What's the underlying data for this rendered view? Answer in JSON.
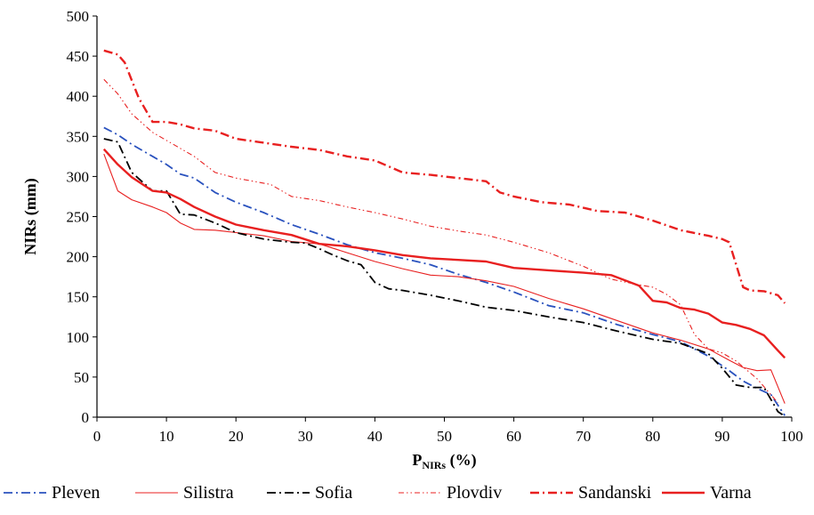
{
  "chart_data": {
    "type": "line",
    "title": "",
    "xlabel": "P",
    "xlabel_sub": "NIRs",
    "xlabel_suffix": " (%)",
    "ylabel": "NIRs (mm)",
    "xlim": [
      0,
      100
    ],
    "ylim": [
      0,
      500
    ],
    "x_ticks": [
      0,
      10,
      20,
      30,
      40,
      50,
      60,
      70,
      80,
      90,
      100
    ],
    "y_ticks": [
      0,
      50,
      100,
      150,
      200,
      250,
      300,
      350,
      400,
      450,
      500
    ],
    "grid": false,
    "legend_position": "bottom",
    "series": [
      {
        "name": "Pleven",
        "color": "#2a52be",
        "dash": "dash-dot",
        "weight": "medium",
        "x": [
          1,
          3,
          5,
          8,
          10,
          12,
          14,
          17,
          20,
          24,
          28,
          32,
          36,
          40,
          44,
          48,
          52,
          56,
          60,
          65,
          70,
          75,
          80,
          84,
          88,
          91,
          93,
          95,
          97,
          99
        ],
        "y": [
          361,
          352,
          340,
          325,
          315,
          303,
          298,
          280,
          268,
          255,
          240,
          228,
          215,
          205,
          198,
          190,
          178,
          168,
          156,
          139,
          130,
          115,
          103,
          94,
          76,
          58,
          45,
          36,
          28,
          2
        ]
      },
      {
        "name": "Silistra",
        "color": "#e82020",
        "dash": "solid",
        "weight": "thin",
        "x": [
          1,
          3,
          5,
          8,
          10,
          12,
          14,
          17,
          20,
          24,
          28,
          32,
          36,
          40,
          44,
          48,
          52,
          56,
          60,
          65,
          70,
          75,
          80,
          84,
          88,
          91,
          93,
          95,
          97,
          99
        ],
        "y": [
          328,
          282,
          271,
          262,
          255,
          242,
          234,
          233,
          230,
          226,
          219,
          216,
          205,
          194,
          185,
          177,
          175,
          170,
          163,
          148,
          135,
          120,
          105,
          96,
          85,
          71,
          62,
          58,
          59,
          17
        ]
      },
      {
        "name": "Sofia",
        "color": "#000000",
        "dash": "dash-dot",
        "weight": "medium",
        "x": [
          1,
          3,
          5,
          8,
          10,
          12,
          14,
          17,
          20,
          24,
          28,
          30,
          32,
          34,
          36,
          38,
          40,
          42,
          44,
          48,
          52,
          56,
          60,
          65,
          70,
          75,
          80,
          84,
          88,
          90,
          92,
          94,
          96,
          98,
          99
        ],
        "y": [
          347,
          343,
          305,
          282,
          282,
          253,
          252,
          242,
          230,
          222,
          218,
          217,
          210,
          202,
          195,
          190,
          168,
          160,
          158,
          152,
          145,
          137,
          133,
          125,
          118,
          107,
          97,
          92,
          79,
          61,
          40,
          37,
          37,
          7,
          1
        ]
      },
      {
        "name": "Plovdiv",
        "color": "#e82020",
        "dash": "dash-dot-dot",
        "weight": "thin",
        "x": [
          1,
          3,
          5,
          8,
          10,
          12,
          14,
          17,
          20,
          25,
          28,
          32,
          36,
          40,
          44,
          48,
          52,
          56,
          60,
          65,
          70,
          74,
          78,
          80,
          82,
          84,
          86,
          88,
          90,
          92,
          95,
          98
        ],
        "y": [
          421,
          403,
          378,
          355,
          345,
          335,
          325,
          305,
          298,
          290,
          275,
          270,
          262,
          255,
          247,
          238,
          232,
          227,
          218,
          205,
          188,
          172,
          165,
          162,
          153,
          140,
          103,
          85,
          80,
          70,
          48,
          18
        ]
      },
      {
        "name": "Sandanski",
        "color": "#e82020",
        "dash": "dash-dot",
        "weight": "thick",
        "x": [
          1,
          3,
          4,
          6,
          8,
          10,
          12,
          14,
          17,
          20,
          24,
          28,
          32,
          36,
          40,
          44,
          48,
          52,
          56,
          58,
          60,
          64,
          68,
          72,
          76,
          80,
          84,
          88,
          90,
          91,
          92,
          93,
          94,
          96,
          98,
          99
        ],
        "y": [
          457,
          452,
          442,
          398,
          368,
          368,
          365,
          360,
          357,
          347,
          342,
          337,
          333,
          325,
          320,
          305,
          302,
          298,
          294,
          280,
          275,
          268,
          265,
          257,
          255,
          245,
          233,
          226,
          222,
          218,
          190,
          162,
          158,
          157,
          152,
          142
        ]
      },
      {
        "name": "Varna",
        "color": "#e82020",
        "dash": "solid",
        "weight": "thick",
        "x": [
          1,
          3,
          5,
          8,
          10,
          12,
          14,
          17,
          20,
          24,
          28,
          32,
          36,
          40,
          44,
          48,
          52,
          56,
          60,
          65,
          70,
          74,
          78,
          80,
          82,
          84,
          86,
          88,
          90,
          92,
          94,
          96,
          98,
          99
        ],
        "y": [
          334,
          315,
          299,
          282,
          280,
          272,
          262,
          250,
          240,
          233,
          227,
          216,
          213,
          208,
          202,
          198,
          196,
          194,
          186,
          183,
          180,
          177,
          164,
          145,
          143,
          136,
          134,
          129,
          118,
          115,
          110,
          102,
          83,
          74
        ]
      }
    ]
  }
}
